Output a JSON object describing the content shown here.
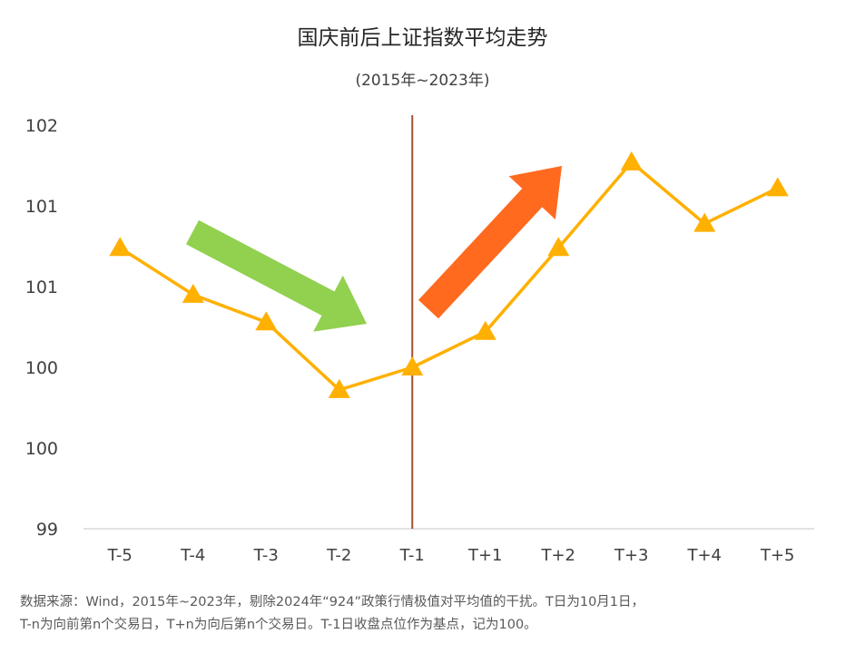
{
  "chart_data": {
    "type": "line",
    "title": "国庆前后上证指数平均走势",
    "subtitle": "(2015年~2023年)",
    "xlabel": "",
    "ylabel": "",
    "categories": [
      "T-5",
      "T-4",
      "T-3",
      "T-2",
      "T-1",
      "T+1",
      "T+2",
      "T+3",
      "T+4",
      "T+5"
    ],
    "series": [
      {
        "values": [
          100.74,
          100.45,
          100.28,
          99.86,
          100.0,
          100.22,
          100.74,
          101.27,
          100.89,
          101.11
        ]
      }
    ],
    "y_tick_labels": [
      "102",
      "101",
      "101",
      "100",
      "100",
      "99"
    ],
    "ylim": [
      99.0,
      101.5
    ],
    "reference_line_at": "T-1",
    "annotations": [
      {
        "type": "arrow",
        "direction": "down",
        "color": "#92D050"
      },
      {
        "type": "arrow",
        "direction": "up",
        "color": "#FF6A1F"
      }
    ],
    "grid": false,
    "legend": "none",
    "colors": {
      "line": "#FFB000",
      "marker": "#FFB000",
      "reference_line": "#A0522D",
      "axis": "#D9D9D9"
    }
  },
  "footnote": {
    "line1": "数据来源：Wind，2015年~2023年，剔除2024年“924”政策行情极值对平均值的干扰。T日为10月1日，",
    "line2": "T-n为向前第n个交易日，T+n为向后第n个交易日。T-1日收盘点位作为基点，记为100。"
  }
}
